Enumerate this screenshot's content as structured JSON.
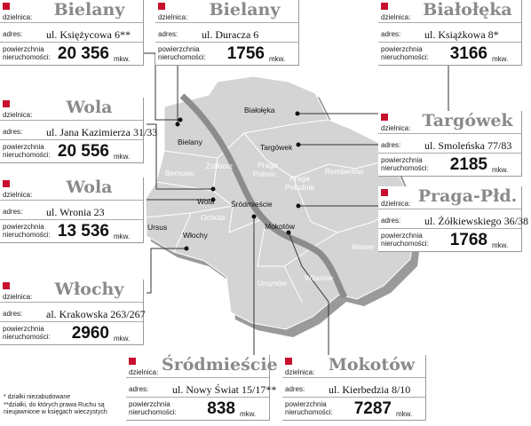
{
  "labels": {
    "district": "dzielnica:",
    "address": "adres:",
    "area": "powierzchnia nieruchomości:",
    "unit": "mkw."
  },
  "boxes": [
    {
      "district": "Bielany",
      "address": "ul. Księżycowa 6**",
      "area": "20 356"
    },
    {
      "district": "Bielany",
      "address": "ul. Duracza 6",
      "area": "1756"
    },
    {
      "district": "Białołęka",
      "address": "ul. Książkowa 8*",
      "area": "3166"
    },
    {
      "district": "Wola",
      "address": "ul. Jana Kazimierza 31/33",
      "area": "20 556"
    },
    {
      "district": "Targówek",
      "address": "ul. Smoleńska 77/83",
      "area": "2185"
    },
    {
      "district": "Wola",
      "address": "ul. Wronia 23",
      "area": "13 536"
    },
    {
      "district": "Praga-Płd.",
      "address": "ul. Żółkiewskiego 36/38",
      "area": "1768"
    },
    {
      "district": "Włochy",
      "address": "al. Krakowska 263/267",
      "area": "2960"
    },
    {
      "district": "Śródmieście",
      "address": "ul. Nowy Świat 15/17**",
      "area": "838"
    },
    {
      "district": "Mokotów",
      "address": "ul. Kierbedzia 8/10",
      "area": "7287"
    }
  ],
  "map_labels": [
    "Białołęka",
    "Bielany",
    "Targówek",
    "Żoliborz",
    "Praga Północ",
    "Bemowo",
    "Rembertów",
    "Wola",
    "Praga Południe",
    "Śródmieście",
    "Ochota",
    "Ursus",
    "Włochy",
    "Mokotów",
    "Wawer",
    "Ursynów",
    "Wilanów"
  ],
  "footnotes": [
    "* działki niezabudowane",
    "**działki, do których prawa Ruchu są nieujawnione w księgach wieczystych"
  ]
}
